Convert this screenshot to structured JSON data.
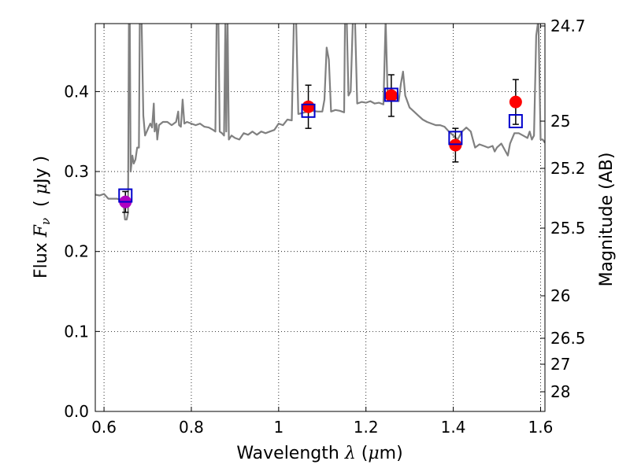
{
  "chart_data": {
    "type": "scatter",
    "title": "",
    "xlabel": {
      "prefix": "Wavelength ",
      "symbol": "λ",
      "unit_open": " (",
      "unit_mu": "μ",
      "unit_rest": "m)"
    },
    "ylabel": {
      "prefix": "Flux ",
      "symbol": "F",
      "sub": "ν",
      "unit_open": "( ",
      "unit_mu": "μ",
      "unit_rest": "Jy )"
    },
    "y2label": "Magnitude (AB)",
    "xlim": [
      0.58,
      1.61
    ],
    "ylim": [
      0.0,
      0.485
    ],
    "grid": true,
    "x_ticks": [
      {
        "value": 0.6,
        "label": "0.6"
      },
      {
        "value": 0.8,
        "label": "0.8"
      },
      {
        "value": 1.0,
        "label": "1"
      },
      {
        "value": 1.2,
        "label": "1.2"
      },
      {
        "value": 1.4,
        "label": "1.4"
      },
      {
        "value": 1.6,
        "label": "1.6"
      }
    ],
    "y_ticks": [
      {
        "value": 0.0,
        "label": "0.0"
      },
      {
        "value": 0.1,
        "label": "0.1"
      },
      {
        "value": 0.2,
        "label": "0.2"
      },
      {
        "value": 0.3,
        "label": "0.3"
      },
      {
        "value": 0.4,
        "label": "0.4"
      }
    ],
    "y2_ticks": [
      {
        "label": "24.7"
      },
      {
        "label": "25"
      },
      {
        "label": "25.2"
      },
      {
        "label": "25.5"
      },
      {
        "label": "26"
      },
      {
        "label": "26.5"
      },
      {
        "label": "27"
      },
      {
        "label": "28"
      }
    ],
    "observed": {
      "marker": "circle",
      "color": "#ff0000",
      "points": [
        {
          "x": 0.649,
          "y": 0.262,
          "err": 0.013,
          "color": "#b000c0"
        },
        {
          "x": 1.068,
          "y": 0.381,
          "err": 0.027,
          "color": "#ff0000"
        },
        {
          "x": 1.258,
          "y": 0.395,
          "err": 0.026,
          "color": "#ff0000"
        },
        {
          "x": 1.405,
          "y": 0.333,
          "err": 0.021,
          "color": "#ff0000"
        },
        {
          "x": 1.543,
          "y": 0.387,
          "err": 0.028,
          "color": "#ff0000"
        }
      ]
    },
    "model": {
      "marker": "square",
      "color": "#0000cc",
      "points": [
        {
          "x": 0.649,
          "y": 0.27
        },
        {
          "x": 1.068,
          "y": 0.376
        },
        {
          "x": 1.258,
          "y": 0.396
        },
        {
          "x": 1.405,
          "y": 0.342
        },
        {
          "x": 1.543,
          "y": 0.363
        }
      ]
    },
    "spectrum": {
      "color": "#808080",
      "points": [
        [
          0.58,
          0.271
        ],
        [
          0.59,
          0.27
        ],
        [
          0.6,
          0.272
        ],
        [
          0.61,
          0.266
        ],
        [
          0.62,
          0.266
        ],
        [
          0.63,
          0.266
        ],
        [
          0.64,
          0.264
        ],
        [
          0.645,
          0.258
        ],
        [
          0.648,
          0.24
        ],
        [
          0.652,
          0.24
        ],
        [
          0.655,
          0.248
        ],
        [
          0.657,
          0.49
        ],
        [
          0.659,
          0.49
        ],
        [
          0.661,
          0.3
        ],
        [
          0.665,
          0.32
        ],
        [
          0.668,
          0.31
        ],
        [
          0.672,
          0.315
        ],
        [
          0.676,
          0.33
        ],
        [
          0.68,
          0.33
        ],
        [
          0.682,
          0.49
        ],
        [
          0.686,
          0.49
        ],
        [
          0.69,
          0.37
        ],
        [
          0.694,
          0.345
        ],
        [
          0.698,
          0.35
        ],
        [
          0.702,
          0.355
        ],
        [
          0.706,
          0.36
        ],
        [
          0.71,
          0.355
        ],
        [
          0.714,
          0.385
        ],
        [
          0.716,
          0.35
        ],
        [
          0.72,
          0.36
        ],
        [
          0.722,
          0.34
        ],
        [
          0.726,
          0.358
        ],
        [
          0.735,
          0.362
        ],
        [
          0.745,
          0.362
        ],
        [
          0.755,
          0.358
        ],
        [
          0.765,
          0.362
        ],
        [
          0.77,
          0.375
        ],
        [
          0.772,
          0.358
        ],
        [
          0.776,
          0.356
        ],
        [
          0.78,
          0.39
        ],
        [
          0.784,
          0.36
        ],
        [
          0.79,
          0.362
        ],
        [
          0.8,
          0.36
        ],
        [
          0.81,
          0.358
        ],
        [
          0.82,
          0.36
        ],
        [
          0.83,
          0.356
        ],
        [
          0.84,
          0.355
        ],
        [
          0.85,
          0.352
        ],
        [
          0.855,
          0.35
        ],
        [
          0.858,
          0.49
        ],
        [
          0.862,
          0.49
        ],
        [
          0.865,
          0.35
        ],
        [
          0.87,
          0.348
        ],
        [
          0.875,
          0.345
        ],
        [
          0.878,
          0.49
        ],
        [
          0.88,
          0.35
        ],
        [
          0.883,
          0.49
        ],
        [
          0.886,
          0.34
        ],
        [
          0.892,
          0.345
        ],
        [
          0.9,
          0.342
        ],
        [
          0.91,
          0.34
        ],
        [
          0.92,
          0.348
        ],
        [
          0.93,
          0.346
        ],
        [
          0.94,
          0.35
        ],
        [
          0.95,
          0.346
        ],
        [
          0.96,
          0.35
        ],
        [
          0.97,
          0.348
        ],
        [
          0.98,
          0.35
        ],
        [
          0.99,
          0.352
        ],
        [
          1.0,
          0.36
        ],
        [
          1.01,
          0.358
        ],
        [
          1.02,
          0.365
        ],
        [
          1.03,
          0.364
        ],
        [
          1.035,
          0.49
        ],
        [
          1.04,
          0.49
        ],
        [
          1.045,
          0.372
        ],
        [
          1.06,
          0.374
        ],
        [
          1.075,
          0.376
        ],
        [
          1.09,
          0.375
        ],
        [
          1.1,
          0.375
        ],
        [
          1.105,
          0.39
        ],
        [
          1.11,
          0.455
        ],
        [
          1.115,
          0.44
        ],
        [
          1.12,
          0.375
        ],
        [
          1.13,
          0.377
        ],
        [
          1.14,
          0.376
        ],
        [
          1.15,
          0.374
        ],
        [
          1.152,
          0.49
        ],
        [
          1.156,
          0.49
        ],
        [
          1.16,
          0.395
        ],
        [
          1.165,
          0.4
        ],
        [
          1.17,
          0.49
        ],
        [
          1.175,
          0.49
        ],
        [
          1.18,
          0.385
        ],
        [
          1.19,
          0.387
        ],
        [
          1.2,
          0.386
        ],
        [
          1.21,
          0.388
        ],
        [
          1.22,
          0.385
        ],
        [
          1.23,
          0.386
        ],
        [
          1.24,
          0.384
        ],
        [
          1.245,
          0.49
        ],
        [
          1.25,
          0.39
        ],
        [
          1.255,
          0.394
        ],
        [
          1.26,
          0.397
        ],
        [
          1.265,
          0.395
        ],
        [
          1.27,
          0.392
        ],
        [
          1.275,
          0.388
        ],
        [
          1.28,
          0.41
        ],
        [
          1.285,
          0.425
        ],
        [
          1.29,
          0.395
        ],
        [
          1.3,
          0.38
        ],
        [
          1.31,
          0.375
        ],
        [
          1.32,
          0.37
        ],
        [
          1.33,
          0.365
        ],
        [
          1.34,
          0.362
        ],
        [
          1.35,
          0.36
        ],
        [
          1.36,
          0.358
        ],
        [
          1.37,
          0.358
        ],
        [
          1.38,
          0.356
        ],
        [
          1.39,
          0.35
        ],
        [
          1.4,
          0.345
        ],
        [
          1.41,
          0.34
        ],
        [
          1.42,
          0.35
        ],
        [
          1.43,
          0.355
        ],
        [
          1.44,
          0.35
        ],
        [
          1.445,
          0.34
        ],
        [
          1.45,
          0.33
        ],
        [
          1.46,
          0.334
        ],
        [
          1.47,
          0.332
        ],
        [
          1.48,
          0.33
        ],
        [
          1.49,
          0.332
        ],
        [
          1.495,
          0.325
        ],
        [
          1.5,
          0.33
        ],
        [
          1.51,
          0.335
        ],
        [
          1.52,
          0.325
        ],
        [
          1.525,
          0.32
        ],
        [
          1.53,
          0.335
        ],
        [
          1.54,
          0.348
        ],
        [
          1.55,
          0.348
        ],
        [
          1.56,
          0.345
        ],
        [
          1.57,
          0.342
        ],
        [
          1.575,
          0.35
        ],
        [
          1.58,
          0.34
        ],
        [
          1.585,
          0.345
        ],
        [
          1.59,
          0.47
        ],
        [
          1.595,
          0.49
        ],
        [
          1.6,
          0.34
        ],
        [
          1.605,
          0.34
        ],
        [
          1.61,
          0.336
        ]
      ]
    }
  }
}
